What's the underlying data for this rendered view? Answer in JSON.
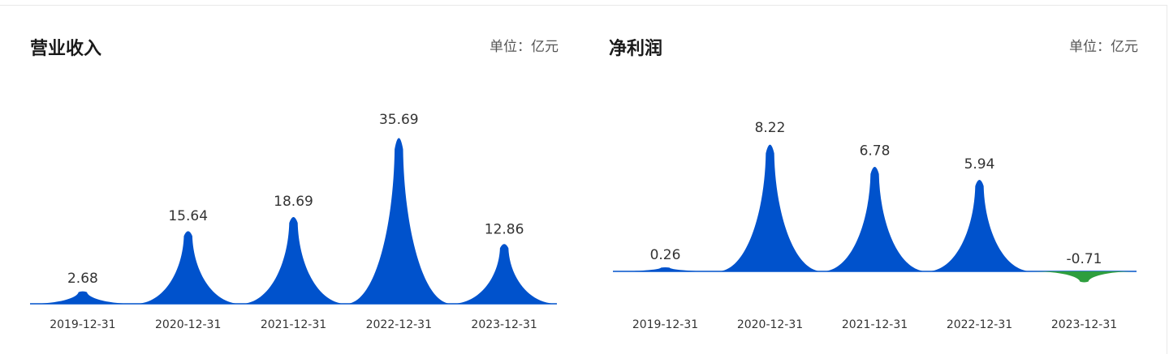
{
  "colors": {
    "positive": "#0052cc",
    "negative": "#2e9e3e",
    "baseline": "#0052cc"
  },
  "revenue_panel": {
    "title": "营业收入",
    "unit_label": "单位：亿元"
  },
  "profit_panel": {
    "title": "净利润",
    "unit_label": "单位：亿元"
  },
  "chart_data": [
    {
      "type": "area",
      "title": "营业收入",
      "unit": "单位：亿元",
      "categories": [
        "2019-12-31",
        "2020-12-31",
        "2021-12-31",
        "2022-12-31",
        "2023-12-31"
      ],
      "values": [
        2.68,
        15.64,
        18.69,
        35.69,
        12.86
      ],
      "value_labels": [
        "2.68",
        "15.64",
        "18.69",
        "35.69",
        "12.86"
      ],
      "ylim": [
        0,
        35.69
      ],
      "grid": false,
      "legend": "none"
    },
    {
      "type": "area",
      "title": "净利润",
      "unit": "单位：亿元",
      "categories": [
        "2019-12-31",
        "2020-12-31",
        "2021-12-31",
        "2022-12-31",
        "2023-12-31"
      ],
      "values": [
        0.26,
        8.22,
        6.78,
        5.94,
        -0.71
      ],
      "value_labels": [
        "0.26",
        "8.22",
        "6.78",
        "5.94",
        "-0.71"
      ],
      "ylim": [
        -0.71,
        8.22
      ],
      "grid": false,
      "legend": "none"
    }
  ]
}
